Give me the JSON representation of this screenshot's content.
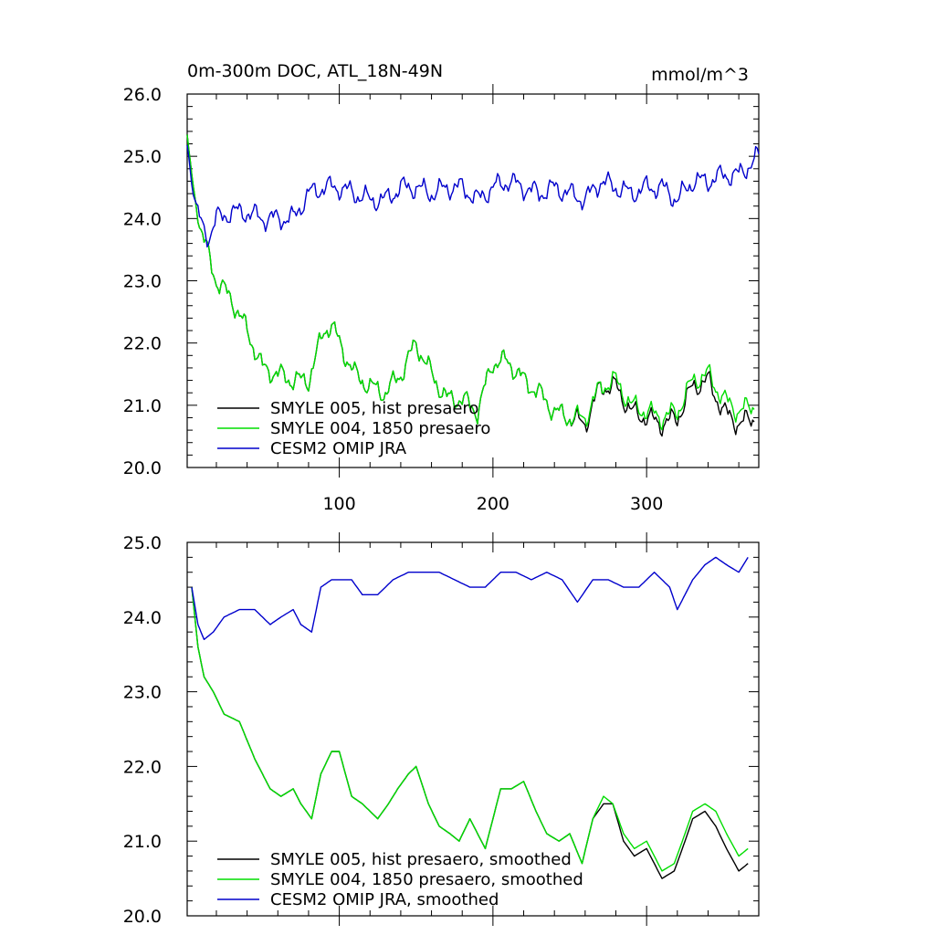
{
  "chart_data": [
    {
      "type": "line",
      "title_left": "0m-300m DOC, ATL_18N-49N",
      "title_right": "mmol/m^3",
      "xlim": [
        1,
        373
      ],
      "ylim": [
        20.0,
        26.0
      ],
      "x_ticks": [
        100,
        200,
        300
      ],
      "x_tick_labels": [
        "100",
        "200",
        "300"
      ],
      "y_ticks": [
        20,
        21,
        22,
        23,
        24,
        25,
        26
      ],
      "y_tick_labels": [
        "20.0",
        "21.0",
        "22.0",
        "23.0",
        "24.0",
        "25.0",
        "26.0"
      ],
      "legend_position": "bottom-left",
      "smoothed": false,
      "series": [
        {
          "name": "SMYLE 005, hist presaero",
          "color": "#000000",
          "anchors": [
            [
              1,
              25.3
            ],
            [
              5,
              24.5
            ],
            [
              10,
              23.8
            ],
            [
              20,
              23.0
            ],
            [
              30,
              22.7
            ],
            [
              40,
              22.2
            ],
            [
              50,
              21.6
            ],
            [
              60,
              21.5
            ],
            [
              70,
              21.4
            ],
            [
              80,
              21.4
            ],
            [
              90,
              22.2
            ],
            [
              95,
              22.3
            ],
            [
              100,
              22.0
            ],
            [
              110,
              21.5
            ],
            [
              120,
              21.3
            ],
            [
              130,
              21.2
            ],
            [
              140,
              21.5
            ],
            [
              150,
              22.0
            ],
            [
              160,
              21.5
            ],
            [
              170,
              21.1
            ],
            [
              180,
              21.1
            ],
            [
              190,
              20.9
            ],
            [
              200,
              21.7
            ],
            [
              210,
              21.7
            ],
            [
              220,
              21.4
            ],
            [
              230,
              21.2
            ],
            [
              240,
              20.9
            ],
            [
              250,
              20.8
            ],
            [
              260,
              20.7
            ],
            [
              270,
              21.3
            ],
            [
              280,
              21.3
            ],
            [
              290,
              20.9
            ],
            [
              300,
              20.8
            ],
            [
              310,
              20.7
            ],
            [
              320,
              20.8
            ],
            [
              330,
              21.3
            ],
            [
              340,
              21.4
            ],
            [
              350,
              20.9
            ],
            [
              360,
              20.7
            ],
            [
              370,
              20.8
            ]
          ]
        },
        {
          "name": "SMYLE 004, 1850 presaero",
          "color": "#00dd00",
          "anchors": [
            [
              1,
              25.3
            ],
            [
              5,
              24.5
            ],
            [
              10,
              23.8
            ],
            [
              20,
              23.0
            ],
            [
              30,
              22.7
            ],
            [
              40,
              22.2
            ],
            [
              50,
              21.6
            ],
            [
              60,
              21.5
            ],
            [
              70,
              21.4
            ],
            [
              80,
              21.4
            ],
            [
              90,
              22.2
            ],
            [
              95,
              22.3
            ],
            [
              100,
              22.0
            ],
            [
              110,
              21.5
            ],
            [
              120,
              21.3
            ],
            [
              130,
              21.2
            ],
            [
              140,
              21.5
            ],
            [
              150,
              22.0
            ],
            [
              160,
              21.5
            ],
            [
              170,
              21.1
            ],
            [
              180,
              21.1
            ],
            [
              190,
              20.9
            ],
            [
              200,
              21.7
            ],
            [
              210,
              21.7
            ],
            [
              220,
              21.4
            ],
            [
              230,
              21.2
            ],
            [
              240,
              20.9
            ],
            [
              250,
              20.8
            ],
            [
              260,
              20.8
            ],
            [
              270,
              21.3
            ],
            [
              280,
              21.4
            ],
            [
              290,
              21.0
            ],
            [
              300,
              20.9
            ],
            [
              310,
              20.8
            ],
            [
              320,
              20.9
            ],
            [
              330,
              21.4
            ],
            [
              340,
              21.5
            ],
            [
              350,
              21.1
            ],
            [
              360,
              20.9
            ],
            [
              370,
              21.0
            ]
          ]
        },
        {
          "name": "CESM2 OMIP JRA",
          "color": "#0000cc",
          "anchors": [
            [
              1,
              25.2
            ],
            [
              5,
              24.4
            ],
            [
              10,
              23.9
            ],
            [
              15,
              23.7
            ],
            [
              20,
              24.0
            ],
            [
              30,
              24.1
            ],
            [
              40,
              24.1
            ],
            [
              50,
              24.0
            ],
            [
              60,
              24.0
            ],
            [
              70,
              24.0
            ],
            [
              80,
              24.4
            ],
            [
              90,
              24.5
            ],
            [
              100,
              24.5
            ],
            [
              110,
              24.4
            ],
            [
              120,
              24.3
            ],
            [
              130,
              24.3
            ],
            [
              140,
              24.5
            ],
            [
              150,
              24.5
            ],
            [
              160,
              24.4
            ],
            [
              170,
              24.5
            ],
            [
              180,
              24.5
            ],
            [
              190,
              24.3
            ],
            [
              200,
              24.5
            ],
            [
              210,
              24.6
            ],
            [
              220,
              24.5
            ],
            [
              230,
              24.4
            ],
            [
              240,
              24.5
            ],
            [
              250,
              24.4
            ],
            [
              260,
              24.3
            ],
            [
              270,
              24.6
            ],
            [
              280,
              24.5
            ],
            [
              290,
              24.4
            ],
            [
              300,
              24.5
            ],
            [
              310,
              24.5
            ],
            [
              320,
              24.3
            ],
            [
              330,
              24.6
            ],
            [
              340,
              24.6
            ],
            [
              350,
              24.7
            ],
            [
              360,
              24.7
            ],
            [
              373,
              25.0
            ]
          ]
        }
      ]
    },
    {
      "type": "line",
      "xlim": [
        1,
        373
      ],
      "ylim": [
        20.0,
        25.0
      ],
      "x_ticks": [
        100,
        200,
        300
      ],
      "y_ticks": [
        20,
        21,
        22,
        23,
        24,
        25
      ],
      "y_tick_labels": [
        "20.0",
        "21.0",
        "22.0",
        "23.0",
        "24.0",
        "25.0"
      ],
      "legend_position": "bottom-left",
      "smoothed": true,
      "series": [
        {
          "name": "SMYLE 005, hist presaero, smoothed",
          "color": "#000000",
          "anchors": [
            [
              4,
              24.4
            ],
            [
              8,
              23.6
            ],
            [
              12,
              23.2
            ],
            [
              18,
              23.0
            ],
            [
              25,
              22.7
            ],
            [
              35,
              22.6
            ],
            [
              45,
              22.1
            ],
            [
              55,
              21.7
            ],
            [
              62,
              21.6
            ],
            [
              70,
              21.7
            ],
            [
              75,
              21.5
            ],
            [
              82,
              21.3
            ],
            [
              88,
              21.9
            ],
            [
              95,
              22.2
            ],
            [
              100,
              22.2
            ],
            [
              108,
              21.6
            ],
            [
              115,
              21.5
            ],
            [
              125,
              21.3
            ],
            [
              132,
              21.5
            ],
            [
              138,
              21.7
            ],
            [
              145,
              21.9
            ],
            [
              150,
              22.0
            ],
            [
              158,
              21.5
            ],
            [
              165,
              21.2
            ],
            [
              172,
              21.1
            ],
            [
              178,
              21.0
            ],
            [
              185,
              21.3
            ],
            [
              195,
              20.9
            ],
            [
              205,
              21.7
            ],
            [
              212,
              21.7
            ],
            [
              220,
              21.8
            ],
            [
              228,
              21.4
            ],
            [
              235,
              21.1
            ],
            [
              243,
              21.0
            ],
            [
              250,
              21.1
            ],
            [
              258,
              20.7
            ],
            [
              265,
              21.3
            ],
            [
              272,
              21.5
            ],
            [
              278,
              21.5
            ],
            [
              285,
              21.0
            ],
            [
              292,
              20.8
            ],
            [
              300,
              20.9
            ],
            [
              305,
              20.7
            ],
            [
              310,
              20.5
            ],
            [
              318,
              20.6
            ],
            [
              325,
              21.0
            ],
            [
              330,
              21.3
            ],
            [
              338,
              21.4
            ],
            [
              345,
              21.2
            ],
            [
              352,
              20.9
            ],
            [
              360,
              20.6
            ],
            [
              366,
              20.7
            ]
          ]
        },
        {
          "name": "SMYLE 004, 1850 presaero, smoothed",
          "color": "#00dd00",
          "anchors": [
            [
              4,
              24.4
            ],
            [
              8,
              23.6
            ],
            [
              12,
              23.2
            ],
            [
              18,
              23.0
            ],
            [
              25,
              22.7
            ],
            [
              35,
              22.6
            ],
            [
              45,
              22.1
            ],
            [
              55,
              21.7
            ],
            [
              62,
              21.6
            ],
            [
              70,
              21.7
            ],
            [
              75,
              21.5
            ],
            [
              82,
              21.3
            ],
            [
              88,
              21.9
            ],
            [
              95,
              22.2
            ],
            [
              100,
              22.2
            ],
            [
              108,
              21.6
            ],
            [
              115,
              21.5
            ],
            [
              125,
              21.3
            ],
            [
              132,
              21.5
            ],
            [
              138,
              21.7
            ],
            [
              145,
              21.9
            ],
            [
              150,
              22.0
            ],
            [
              158,
              21.5
            ],
            [
              165,
              21.2
            ],
            [
              172,
              21.1
            ],
            [
              178,
              21.0
            ],
            [
              185,
              21.3
            ],
            [
              195,
              20.9
            ],
            [
              205,
              21.7
            ],
            [
              212,
              21.7
            ],
            [
              220,
              21.8
            ],
            [
              228,
              21.4
            ],
            [
              235,
              21.1
            ],
            [
              243,
              21.0
            ],
            [
              250,
              21.1
            ],
            [
              258,
              20.7
            ],
            [
              265,
              21.3
            ],
            [
              272,
              21.6
            ],
            [
              278,
              21.5
            ],
            [
              285,
              21.1
            ],
            [
              292,
              20.9
            ],
            [
              300,
              21.0
            ],
            [
              305,
              20.8
            ],
            [
              310,
              20.6
            ],
            [
              318,
              20.7
            ],
            [
              325,
              21.1
            ],
            [
              330,
              21.4
            ],
            [
              338,
              21.5
            ],
            [
              345,
              21.4
            ],
            [
              352,
              21.1
            ],
            [
              360,
              20.8
            ],
            [
              366,
              20.9
            ]
          ]
        },
        {
          "name": "CESM2 OMIP JRA, smoothed",
          "color": "#0000cc",
          "anchors": [
            [
              4,
              24.4
            ],
            [
              8,
              23.9
            ],
            [
              12,
              23.7
            ],
            [
              18,
              23.8
            ],
            [
              25,
              24.0
            ],
            [
              35,
              24.1
            ],
            [
              45,
              24.1
            ],
            [
              55,
              23.9
            ],
            [
              62,
              24.0
            ],
            [
              70,
              24.1
            ],
            [
              75,
              23.9
            ],
            [
              82,
              23.8
            ],
            [
              88,
              24.4
            ],
            [
              95,
              24.5
            ],
            [
              100,
              24.5
            ],
            [
              108,
              24.5
            ],
            [
              115,
              24.3
            ],
            [
              125,
              24.3
            ],
            [
              135,
              24.5
            ],
            [
              145,
              24.6
            ],
            [
              155,
              24.6
            ],
            [
              165,
              24.6
            ],
            [
              175,
              24.5
            ],
            [
              185,
              24.4
            ],
            [
              195,
              24.4
            ],
            [
              205,
              24.6
            ],
            [
              215,
              24.6
            ],
            [
              225,
              24.5
            ],
            [
              235,
              24.6
            ],
            [
              245,
              24.5
            ],
            [
              255,
              24.2
            ],
            [
              265,
              24.5
            ],
            [
              275,
              24.5
            ],
            [
              285,
              24.4
            ],
            [
              295,
              24.4
            ],
            [
              305,
              24.6
            ],
            [
              315,
              24.4
            ],
            [
              320,
              24.1
            ],
            [
              330,
              24.5
            ],
            [
              338,
              24.7
            ],
            [
              345,
              24.8
            ],
            [
              352,
              24.7
            ],
            [
              360,
              24.6
            ],
            [
              366,
              24.8
            ]
          ]
        }
      ]
    }
  ]
}
